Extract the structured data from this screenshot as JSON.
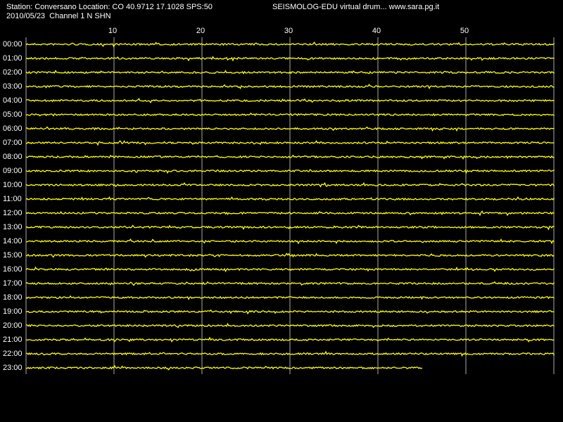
{
  "chart_data": {
    "type": "drum",
    "title": "Station: Conversano Location: CO 40.9712 17.1028 SPS:50",
    "subtitle": "SEISMOLOG-EDU virtual drum... www.sara.pg.it",
    "date_line": "2010/05/23  Channel 1 N SHN",
    "categories": [
      "00:00",
      "01:00",
      "02:00",
      "03:00",
      "04:00",
      "05:00",
      "06:00",
      "07:00",
      "08:00",
      "09:00",
      "10:00",
      "11:00",
      "12:00",
      "13:00",
      "14:00",
      "15:00",
      "16:00",
      "17:00",
      "18:00",
      "19:00",
      "20:00",
      "21:00",
      "22:00",
      "23:00"
    ],
    "values": [
      60,
      60,
      60,
      60,
      60,
      60,
      60,
      60,
      60,
      60,
      60,
      60,
      60,
      60,
      60,
      60,
      60,
      60,
      60,
      60,
      60,
      60,
      60,
      45
    ],
    "color": "#ffff00",
    "xlim": [
      0,
      60
    ],
    "xticks": [
      10,
      20,
      30,
      40,
      50
    ],
    "grid": true
  }
}
